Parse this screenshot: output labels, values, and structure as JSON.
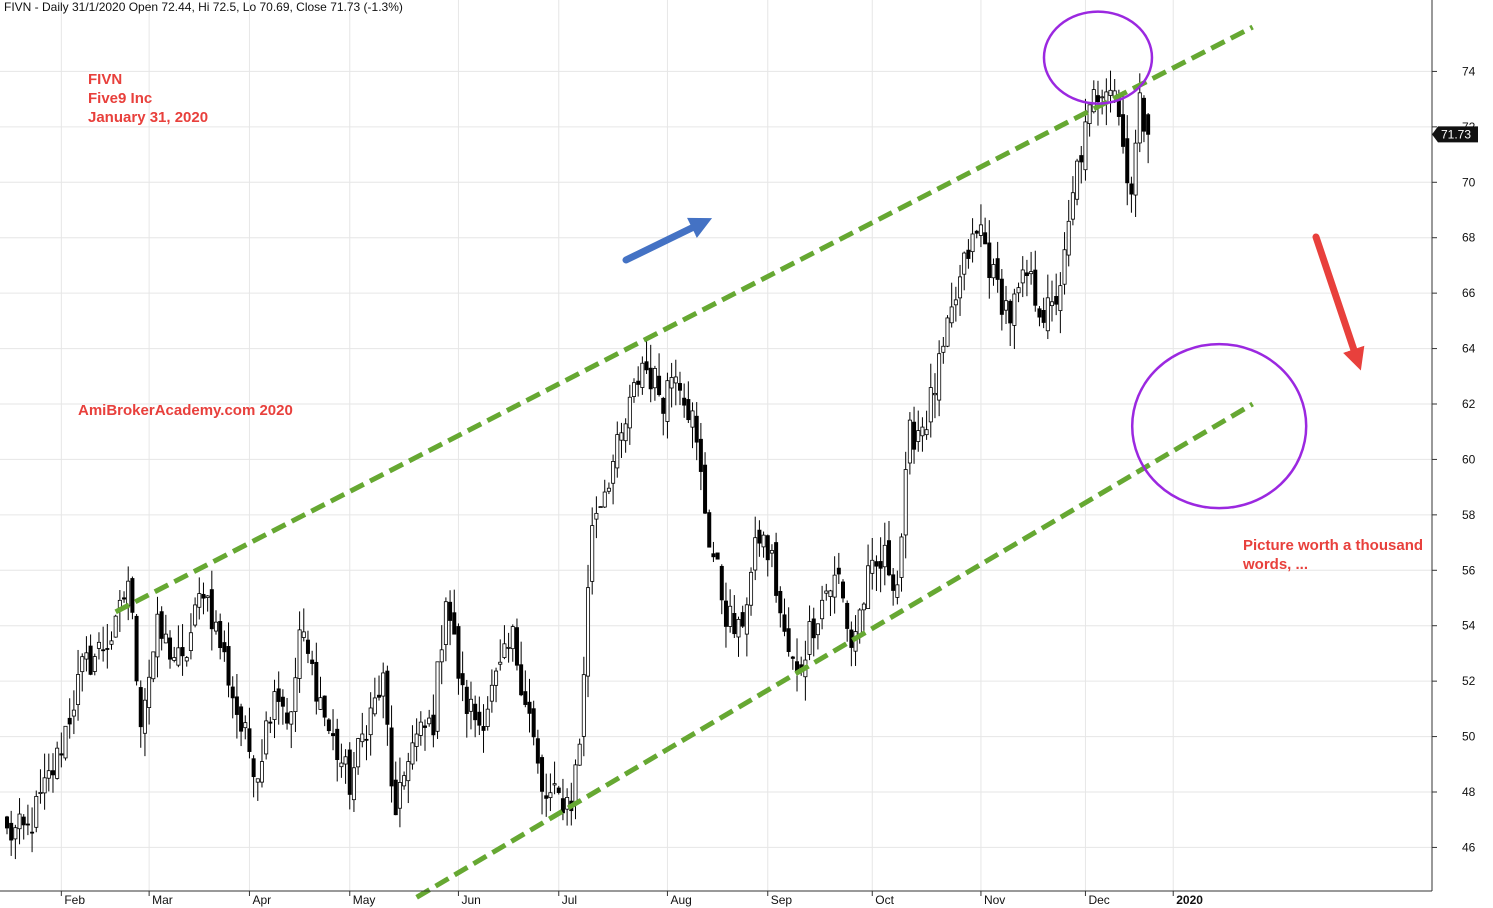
{
  "header": "FIVN - Daily 31/1/2020 Open 72.44, Hi 72.5, Lo 70.69, Close 71.73 (-1.3%)",
  "annotations": {
    "ticker": "FIVN",
    "company": "Five9 Inc",
    "date": "January 31, 2020",
    "watermark": "AmiBrokerAcademy.com   2020",
    "note_line1": "Picture worth a thousand",
    "note_line2": "words, ..."
  },
  "colors": {
    "trendline": "#66a832",
    "circle": "#9b28e0",
    "up_arrow": "#4472c4",
    "down_arrow": "#e8403c",
    "annotation_text": "#e8403c",
    "candle": "#000000",
    "last_price_bg": "#111111"
  },
  "chart_data": {
    "type": "candlestick",
    "title": "FIVN - Daily 31/1/2020 Open 72.44, Hi 72.5, Lo 70.69, Close 71.73 (-1.3%)",
    "ylim": [
      44.5,
      76
    ],
    "yticks": [
      46,
      48,
      50,
      52,
      54,
      56,
      58,
      60,
      62,
      64,
      66,
      68,
      70,
      72,
      74
    ],
    "xticks": [
      "Feb",
      "Mar",
      "Apr",
      "May",
      "Jun",
      "Jul",
      "Aug",
      "Sep",
      "Oct",
      "Nov",
      "Dec",
      "2020"
    ],
    "grid": true,
    "last_close": 71.73,
    "last_close_label": "71.73",
    "path_anchors": [
      [
        0,
        46.5
      ],
      [
        5,
        46.6
      ],
      [
        12,
        49.2
      ],
      [
        18,
        52.4
      ],
      [
        26,
        53.8
      ],
      [
        29,
        55.7
      ],
      [
        32,
        50.8
      ],
      [
        36,
        53.8
      ],
      [
        42,
        52.5
      ],
      [
        47,
        55.5
      ],
      [
        52,
        52.8
      ],
      [
        56,
        50.3
      ],
      [
        60,
        48.8
      ],
      [
        64,
        51.9
      ],
      [
        68,
        50.5
      ],
      [
        70,
        53.8
      ],
      [
        74,
        51.9
      ],
      [
        77,
        50.2
      ],
      [
        82,
        48.3
      ],
      [
        86,
        50.5
      ],
      [
        90,
        51.9
      ],
      [
        93,
        46.8
      ],
      [
        96,
        49.5
      ],
      [
        102,
        50.6
      ],
      [
        105,
        55.2
      ],
      [
        109,
        51.4
      ],
      [
        113,
        50.5
      ],
      [
        118,
        52.3
      ],
      [
        121,
        53.5
      ],
      [
        125,
        50.8
      ],
      [
        128,
        47.8
      ],
      [
        135,
        47.7
      ],
      [
        137,
        49.8
      ],
      [
        140,
        57.8
      ],
      [
        147,
        60.7
      ],
      [
        152,
        63.5
      ],
      [
        157,
        62.3
      ],
      [
        160,
        63.5
      ],
      [
        164,
        61.4
      ],
      [
        168,
        57.2
      ],
      [
        172,
        54.5
      ],
      [
        175,
        53.6
      ],
      [
        180,
        57.3
      ],
      [
        183,
        56.3
      ],
      [
        186,
        53.5
      ],
      [
        189,
        52.1
      ],
      [
        192,
        53.8
      ],
      [
        196,
        55.3
      ],
      [
        199,
        55.7
      ],
      [
        202,
        53.3
      ],
      [
        206,
        55.6
      ],
      [
        210,
        56.4
      ],
      [
        213,
        55.6
      ],
      [
        216,
        60.8
      ],
      [
        220,
        61.5
      ],
      [
        224,
        63.8
      ],
      [
        227,
        65.8
      ],
      [
        230,
        67.5
      ],
      [
        233,
        68.3
      ],
      [
        236,
        66.5
      ],
      [
        240,
        65.2
      ],
      [
        244,
        66.6
      ],
      [
        248,
        65.3
      ],
      [
        250,
        65.3
      ],
      [
        253,
        67.1
      ],
      [
        256,
        70.5
      ],
      [
        260,
        73.0
      ],
      [
        263,
        73.8
      ],
      [
        265,
        73.5
      ],
      [
        267,
        71.3
      ],
      [
        269,
        69.8
      ],
      [
        271,
        72.7
      ],
      [
        273,
        71.8
      ]
    ],
    "trendlines": [
      {
        "name": "upper",
        "start": [
          26,
          54.5
        ],
        "end": [
          298,
          75.6
        ]
      },
      {
        "name": "lower",
        "start": [
          98,
          44.2
        ],
        "end": [
          298,
          62.0
        ]
      }
    ],
    "circles": [
      {
        "name": "top-circle",
        "center": [
          261,
          74.5
        ]
      },
      {
        "name": "target-circle",
        "center": [
          290,
          61.2
        ]
      }
    ]
  }
}
